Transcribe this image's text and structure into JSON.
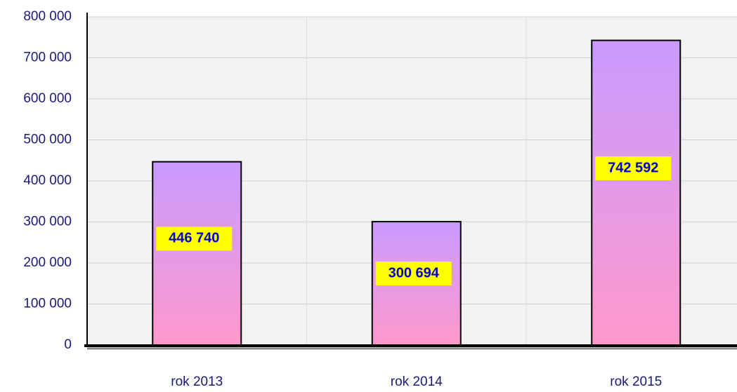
{
  "chart_data": {
    "type": "bar",
    "categories": [
      "rok 2013",
      "rok 2014",
      "rok 2015"
    ],
    "values": [
      446740,
      300694,
      742592
    ],
    "value_labels": [
      "446 740",
      "300 694",
      "742 592"
    ],
    "color": [
      "#c99aff",
      "#ff99cc"
    ],
    "ylim": [
      0,
      800000
    ],
    "yticks": [
      0,
      {
        "value": 100000,
        "label": "100 000"
      },
      {
        "value": 200000,
        "label": "200 000"
      },
      {
        "value": 300000,
        "label": "300 000"
      },
      {
        "value": 400000,
        "label": "400 000"
      },
      {
        "value": 500000,
        "label": "500 000"
      },
      {
        "value": 600000,
        "label": "600 000"
      },
      {
        "value": 700000,
        "label": "700 000"
      },
      {
        "value": 800000,
        "label": "800 000"
      }
    ],
    "grid": true
  }
}
